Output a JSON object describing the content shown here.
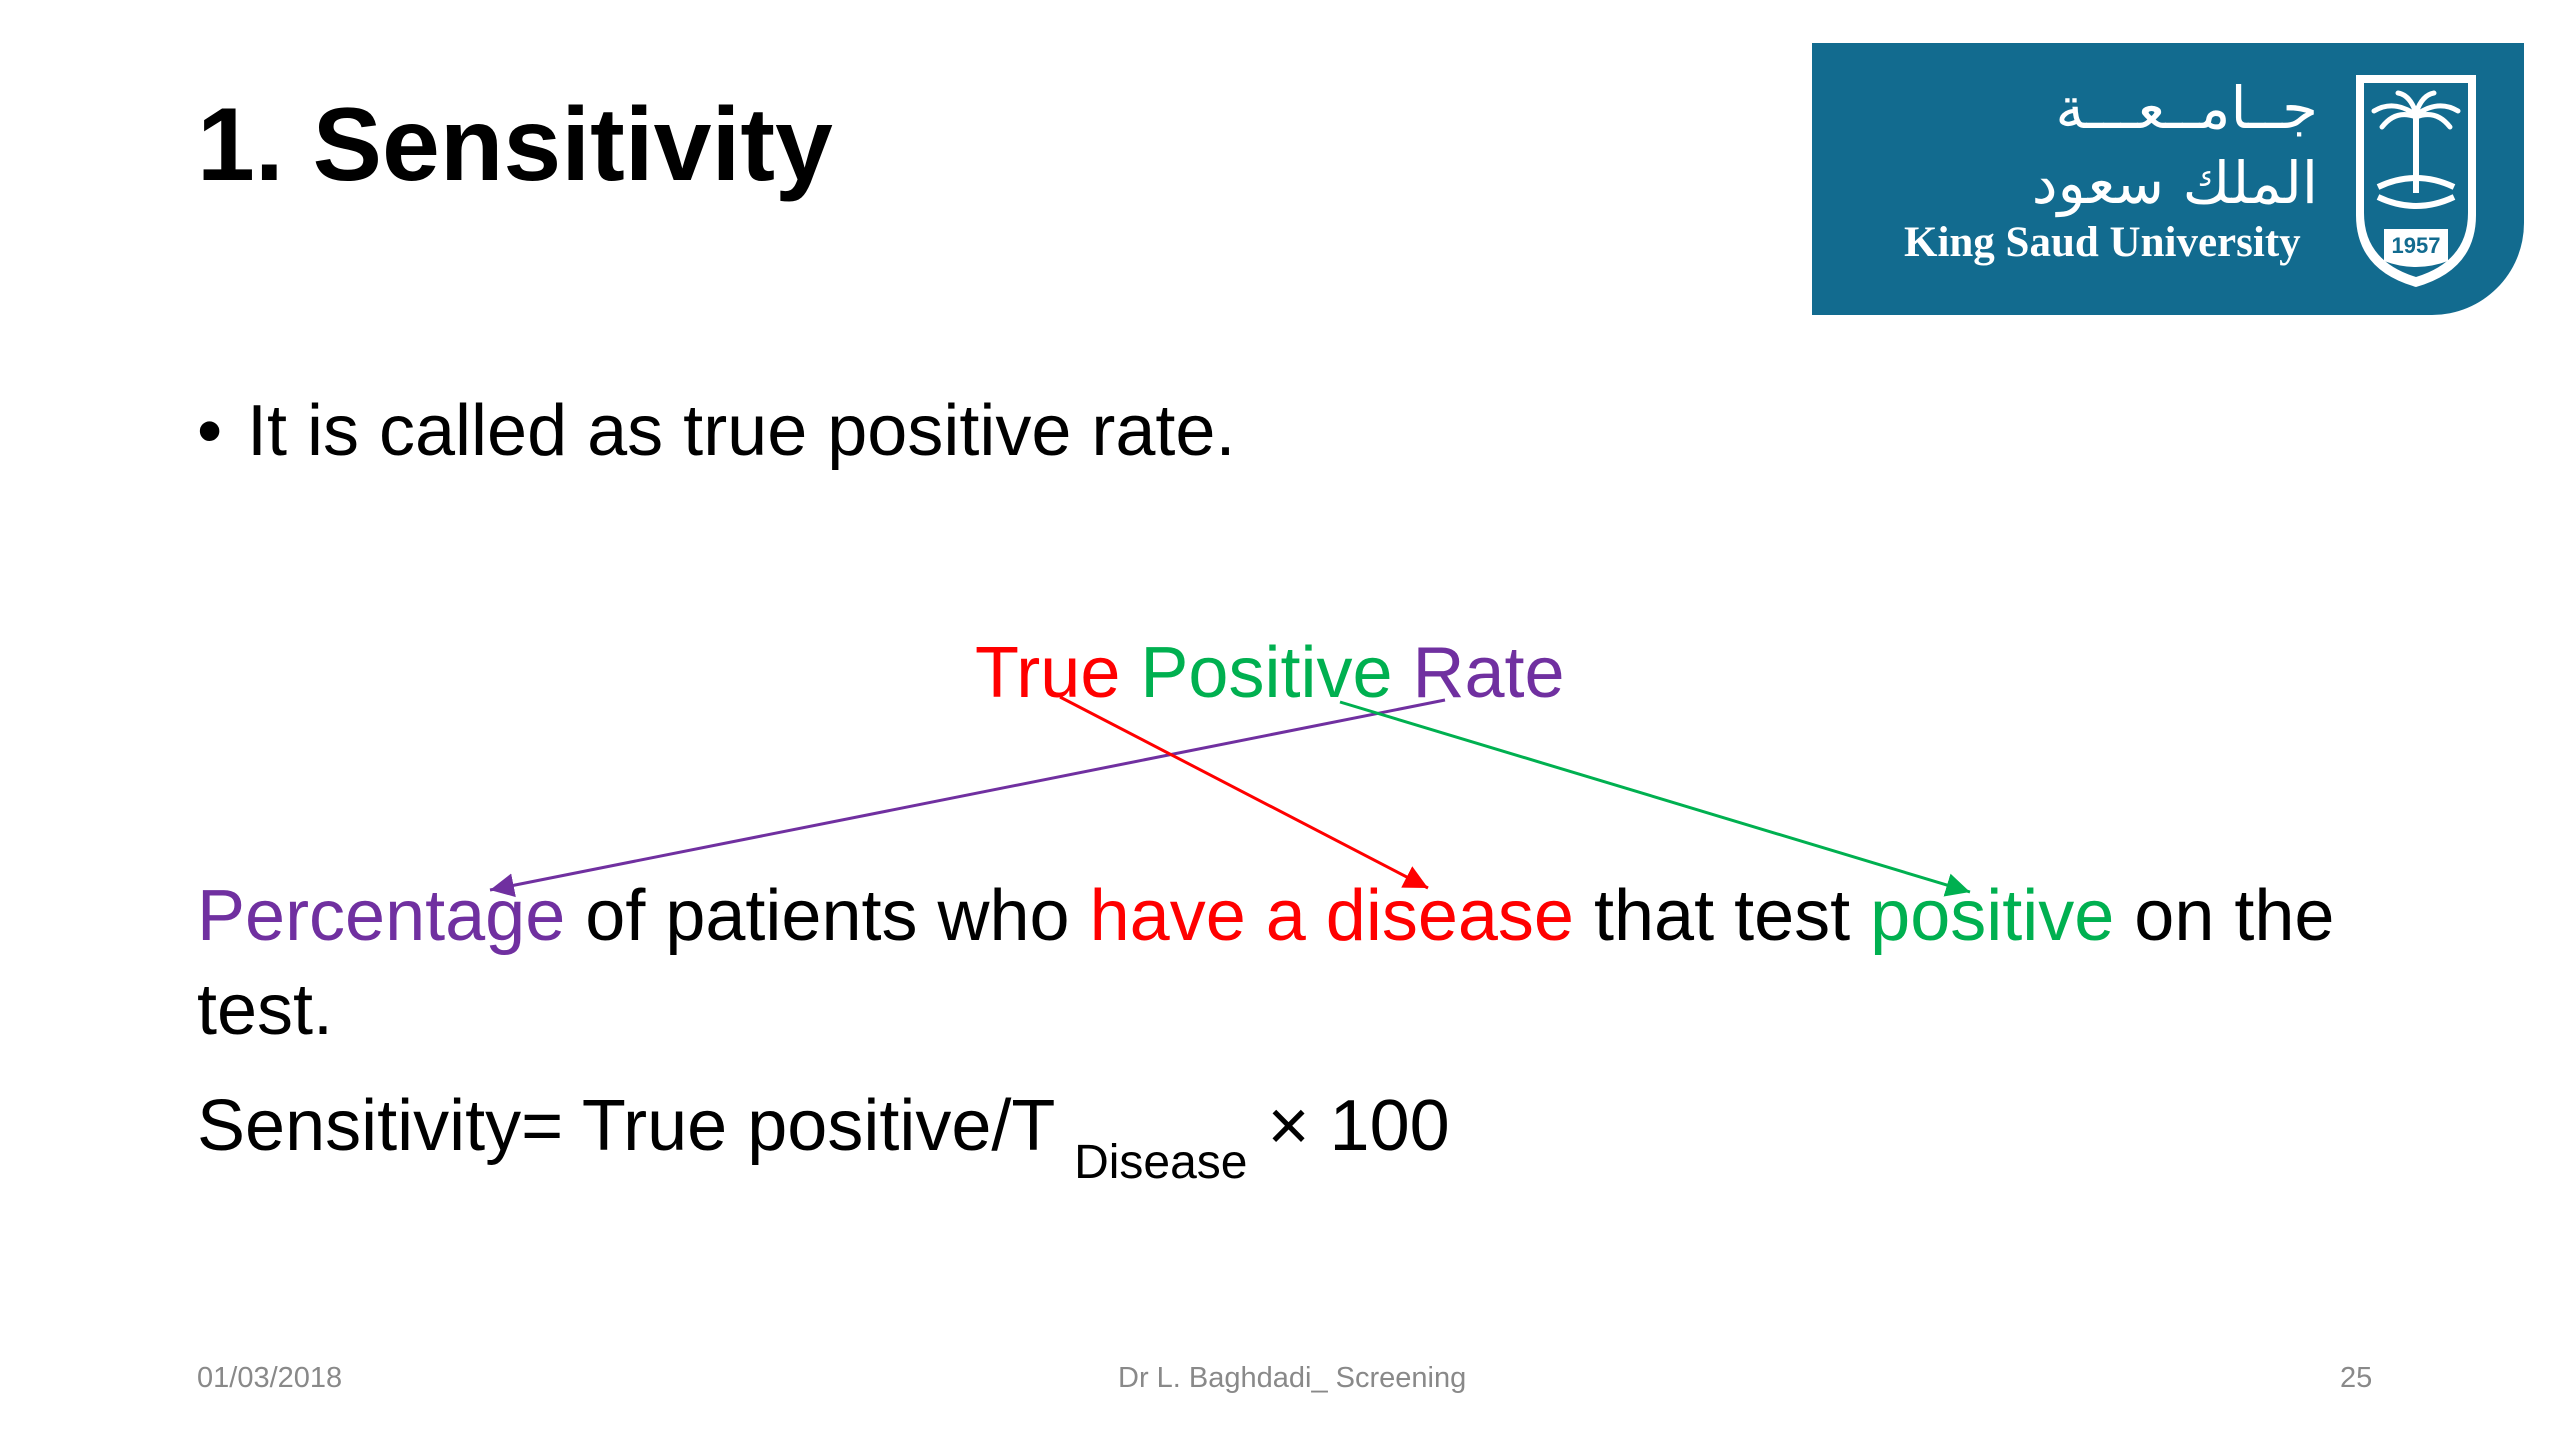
{
  "slide": {
    "title": "1. Sensitivity",
    "bullet": "It is called as true positive rate.",
    "heading": {
      "true": "True",
      "positive": "Positive",
      "rate": "Rate"
    },
    "definition": {
      "percentage": "Percentage",
      "of_patients_who": "of patients who",
      "have_a_disease": "have a disease",
      "that_test": "that test",
      "positive": "positive",
      "on_the_test": "on the test."
    },
    "formula": {
      "main": "Sensitivity= True positive/T",
      "subscript": "Disease",
      "tail": "× 100"
    }
  },
  "logo": {
    "arabic_line1": "جــامــعـــة",
    "arabic_line2": "الملك سعود",
    "english": "King Saud University",
    "year": "1957"
  },
  "footer": {
    "date": "01/03/2018",
    "author": "Dr L. Baghdadi_ Screening",
    "page": "25"
  },
  "colors": {
    "red": "#ff0000",
    "green": "#00b050",
    "purple": "#7030a0",
    "logo_blue": "#126b8f"
  }
}
